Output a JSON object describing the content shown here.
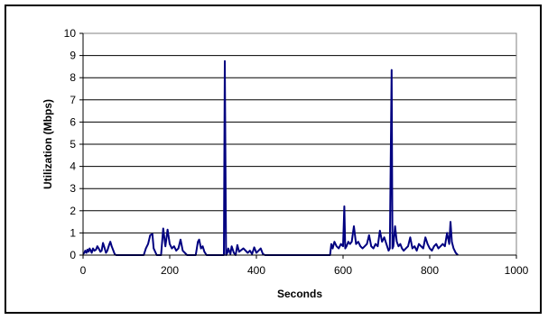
{
  "chart_data": {
    "type": "line",
    "title": "",
    "xlabel": "Seconds",
    "ylabel": "Utilization (Mbps)",
    "xlim": [
      0,
      1000
    ],
    "ylim": [
      0,
      10
    ],
    "x_ticks": [
      "0",
      "200",
      "400",
      "600",
      "800",
      "1000"
    ],
    "y_ticks": [
      "0",
      "1",
      "2",
      "3",
      "4",
      "5",
      "6",
      "7",
      "8",
      "9",
      "10"
    ],
    "grid": "horizontal",
    "legend": "none",
    "line_color": "#000080",
    "series": [
      {
        "x": [
          0,
          3,
          5,
          8,
          10,
          13,
          15,
          18,
          20,
          23,
          26,
          30,
          33,
          36,
          40,
          43,
          46,
          50,
          53,
          56,
          60,
          63,
          66,
          70,
          73,
          76,
          80,
          140,
          145,
          150,
          155,
          160,
          163,
          170,
          180,
          185,
          190,
          195,
          200,
          205,
          210,
          215,
          220,
          225,
          230,
          235,
          240,
          260,
          265,
          268,
          272,
          276,
          280,
          285,
          300,
          325,
          327,
          330,
          333,
          335,
          340,
          343,
          348,
          352,
          356,
          360,
          370,
          380,
          385,
          390,
          395,
          400,
          405,
          410,
          415,
          420,
          570,
          573,
          576,
          580,
          585,
          590,
          595,
          600,
          603,
          605,
          608,
          612,
          616,
          620,
          625,
          630,
          635,
          640,
          645,
          650,
          655,
          660,
          665,
          670,
          675,
          680,
          685,
          690,
          695,
          700,
          705,
          708,
          712,
          714,
          716,
          720,
          724,
          728,
          732,
          736,
          740,
          745,
          750,
          755,
          760,
          765,
          770,
          775,
          780,
          785,
          790,
          795,
          800,
          805,
          810,
          815,
          820,
          825,
          830,
          835,
          840,
          845,
          848,
          851,
          855,
          860,
          865
        ],
        "y": [
          0.05,
          0.1,
          0.2,
          0.1,
          0.25,
          0.15,
          0.3,
          0.2,
          0.1,
          0.3,
          0.2,
          0.25,
          0.4,
          0.3,
          0.15,
          0.2,
          0.55,
          0.3,
          0.1,
          0.2,
          0.45,
          0.6,
          0.4,
          0.2,
          0.05,
          0.0,
          0.0,
          0.0,
          0.3,
          0.5,
          0.9,
          0.95,
          0.3,
          0.0,
          0.0,
          1.2,
          0.4,
          1.15,
          0.5,
          0.3,
          0.4,
          0.2,
          0.3,
          0.7,
          0.2,
          0.1,
          0.0,
          0.0,
          0.6,
          0.7,
          0.3,
          0.4,
          0.15,
          0.0,
          0.0,
          0.0,
          8.75,
          0.0,
          0.1,
          0.3,
          0.05,
          0.4,
          0.1,
          0.0,
          0.45,
          0.15,
          0.3,
          0.1,
          0.2,
          0.05,
          0.35,
          0.1,
          0.2,
          0.3,
          0.05,
          0.0,
          0.0,
          0.5,
          0.3,
          0.6,
          0.4,
          0.3,
          0.5,
          0.4,
          2.2,
          0.3,
          0.4,
          0.6,
          0.5,
          0.6,
          1.3,
          0.5,
          0.6,
          0.4,
          0.3,
          0.4,
          0.5,
          0.9,
          0.4,
          0.3,
          0.5,
          0.4,
          1.1,
          0.6,
          0.8,
          0.5,
          0.2,
          0.3,
          8.35,
          0.3,
          0.4,
          1.3,
          0.6,
          0.4,
          0.5,
          0.3,
          0.2,
          0.3,
          0.4,
          0.8,
          0.3,
          0.4,
          0.2,
          0.5,
          0.4,
          0.3,
          0.8,
          0.5,
          0.3,
          0.2,
          0.4,
          0.5,
          0.3,
          0.4,
          0.5,
          0.4,
          1.0,
          0.5,
          1.5,
          0.6,
          0.3,
          0.1,
          0.0
        ]
      }
    ]
  }
}
